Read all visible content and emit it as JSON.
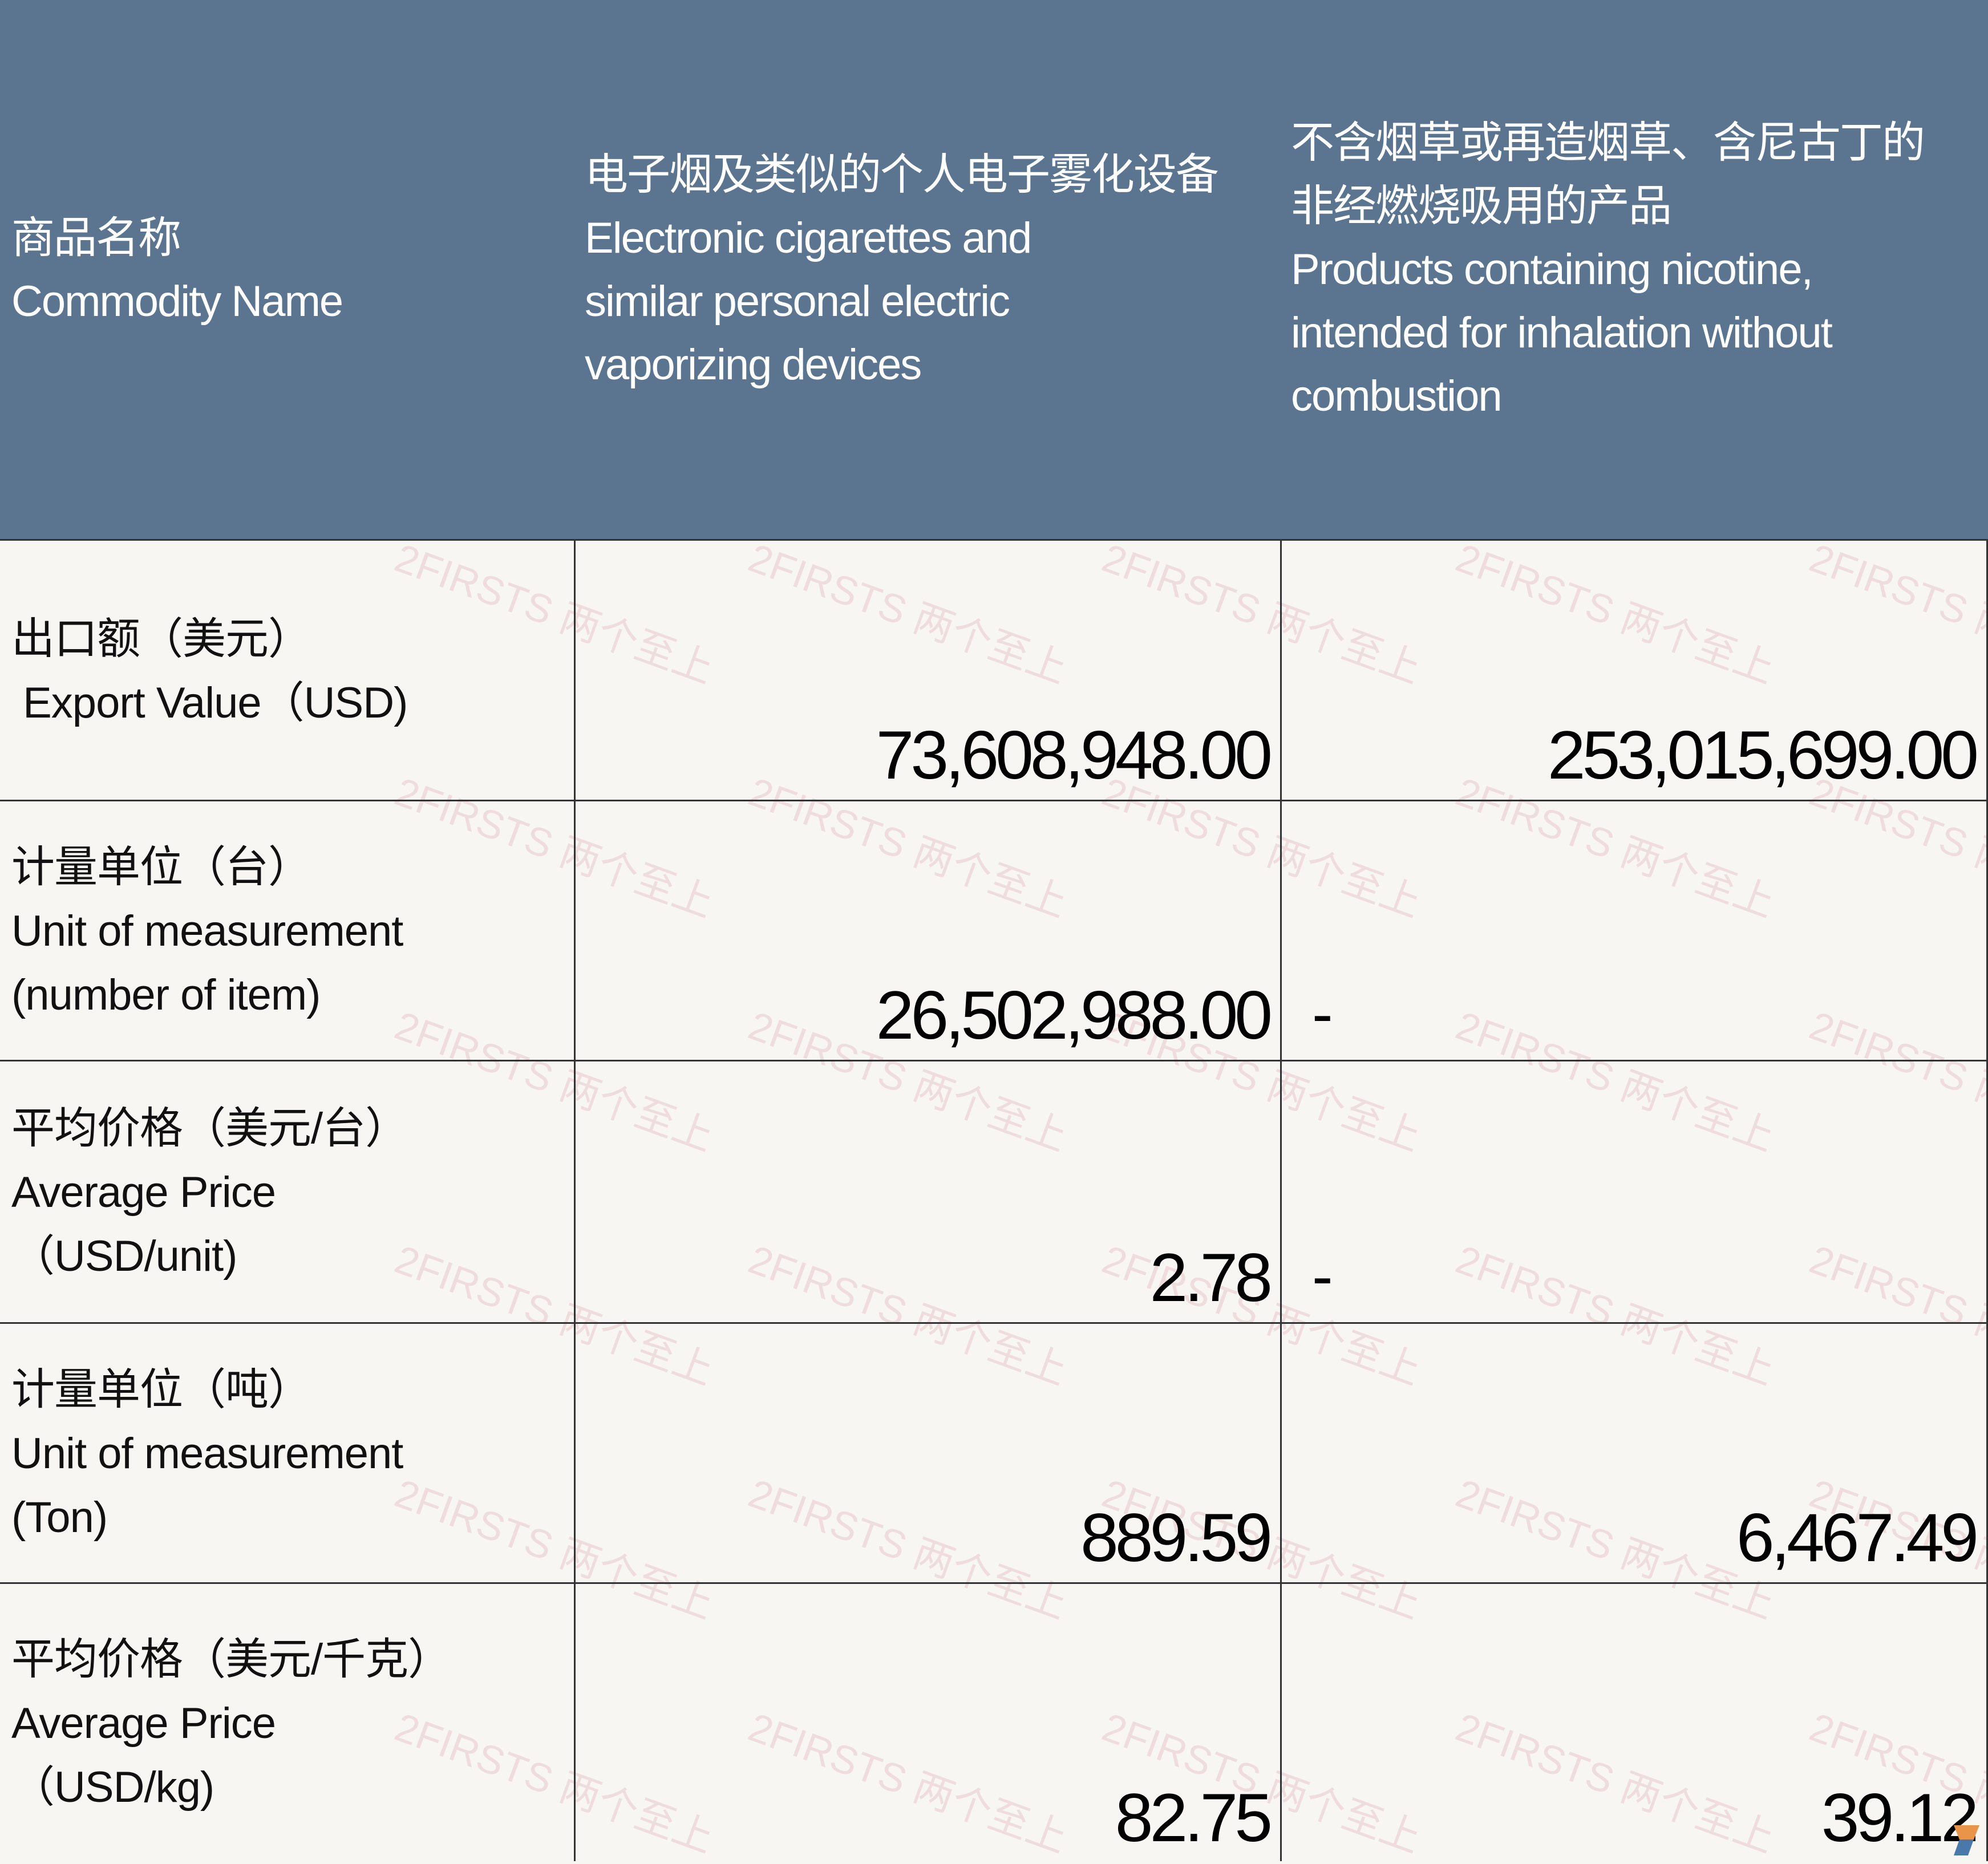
{
  "header": {
    "col0": {
      "zh": "商品名称",
      "en": "Commodity Name"
    },
    "col1": {
      "zh": "电子烟及类似的个人电子雾化设备",
      "en_lines": [
        "Electronic cigarettes and",
        "similar personal electric",
        "vaporizing devices"
      ]
    },
    "col2": {
      "zh_lines": [
        "不含烟草或再造烟草、含尼古丁的",
        "非经燃烧吸用的产品"
      ],
      "en_lines": [
        "Products containing nicotine,",
        "intended for inhalation without",
        "combustion"
      ]
    }
  },
  "rows": [
    {
      "label_lines": [
        "出口额（美元）",
        " Export Value（USD)"
      ],
      "e_cig": "73,608,948.00",
      "nicotine": "253,015,699.00"
    },
    {
      "label_lines": [
        "计量单位（台）",
        "Unit of measurement",
        "(number of item)"
      ],
      "e_cig": "26,502,988.00",
      "nicotine": "-"
    },
    {
      "label_lines": [
        "平均价格（美元/台）",
        "Average Price",
        "（USD/unit)"
      ],
      "e_cig": "2.78",
      "nicotine": "-"
    },
    {
      "label_lines": [
        "计量单位（吨）",
        "Unit of measurement",
        "(Ton)"
      ],
      "e_cig": "889.59",
      "nicotine": "6,467.49"
    },
    {
      "label_lines": [
        "平均价格（美元/千克）",
        "Average Price",
        "（USD/kg)"
      ],
      "e_cig": "82.75",
      "nicotine": "39.12"
    }
  ],
  "watermark": "2FIRSTS 两个至上",
  "colors": {
    "header_bg": "#5b7490",
    "body_bg": "#f8f6f2",
    "watermark": "#cd828c"
  }
}
